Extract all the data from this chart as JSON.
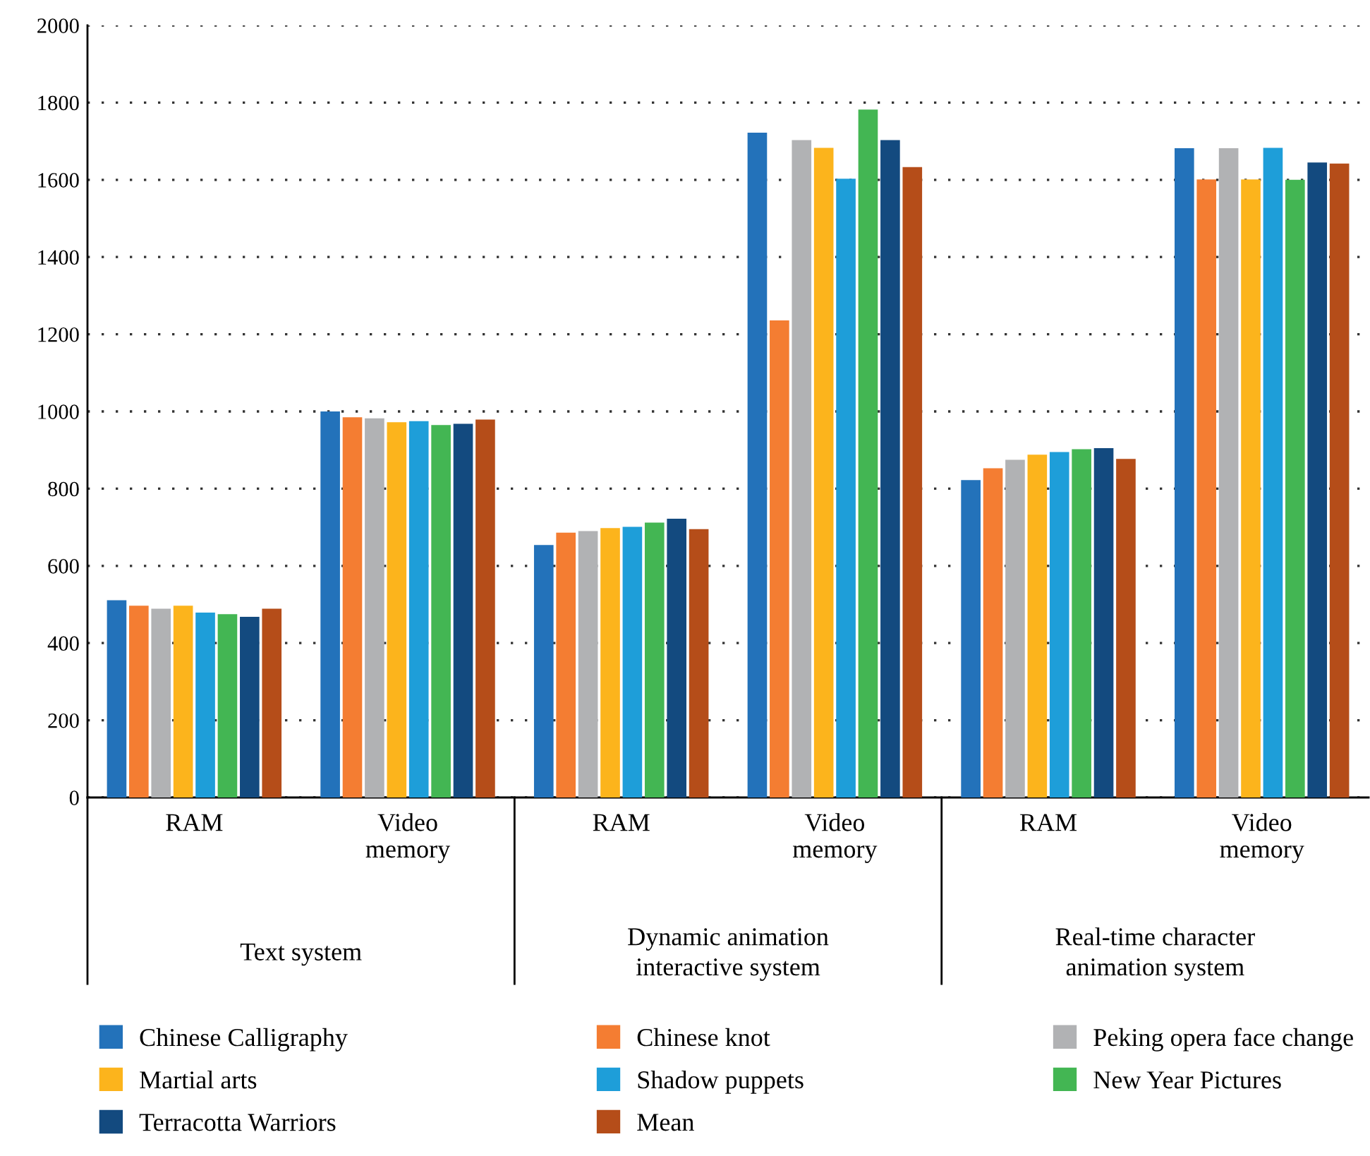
{
  "chart_data": {
    "type": "bar",
    "categories": [
      "RAM",
      "Video\nmemory",
      "RAM",
      "Video\nmemory",
      "RAM",
      "Video\nmemory"
    ],
    "annotations": [
      "Text system",
      "Dynamic animation\ninteractive system",
      "Real-time character\nanimation system"
    ],
    "series": [
      {
        "name": "Chinese Calligraphy",
        "color": "#2372ba",
        "values": [
          511,
          1000,
          654,
          1722,
          822,
          1682
        ]
      },
      {
        "name": "Chinese knot",
        "color": "#f47d32",
        "values": [
          497,
          985,
          686,
          1236,
          853,
          1601
        ]
      },
      {
        "name": "Peking opera face change",
        "color": "#b1b2b4",
        "values": [
          489,
          982,
          690,
          1703,
          875,
          1682
        ]
      },
      {
        "name": "Martial arts",
        "color": "#fcb41c",
        "values": [
          497,
          972,
          698,
          1683,
          888,
          1601
        ]
      },
      {
        "name": "Shadow puppets",
        "color": "#1e9ed9",
        "values": [
          479,
          975,
          701,
          1603,
          895,
          1683
        ]
      },
      {
        "name": "New Year Pictures",
        "color": "#43b653",
        "values": [
          475,
          965,
          712,
          1782,
          902,
          1600
        ]
      },
      {
        "name": "Terracotta Warriors",
        "color": "#134a7f",
        "values": [
          468,
          968,
          722,
          1703,
          905,
          1645
        ]
      },
      {
        "name": "Mean",
        "color": "#b54d19",
        "values": [
          489,
          979,
          695,
          1633,
          877,
          1642
        ]
      }
    ],
    "ylim": [
      0,
      2000
    ],
    "yticks": [
      0,
      200,
      400,
      600,
      800,
      1000,
      1200,
      1400,
      1600,
      1800,
      2000
    ],
    "grid": "y",
    "legend": "bottom"
  }
}
